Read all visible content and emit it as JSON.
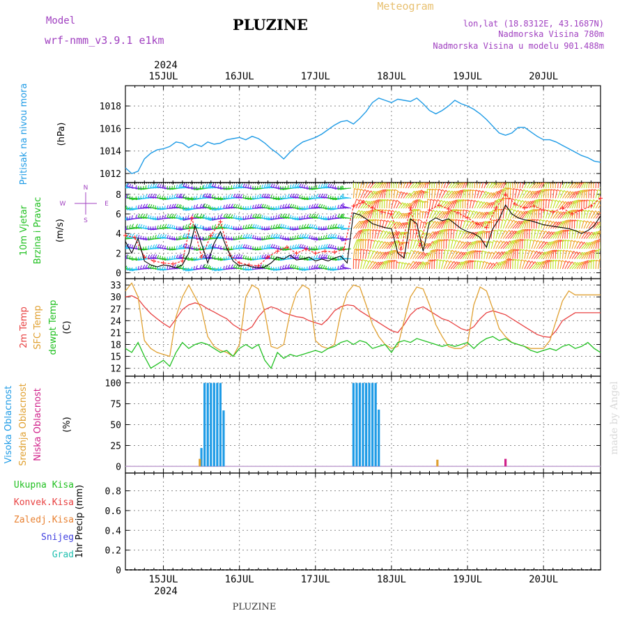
{
  "header": {
    "model_label": "Model",
    "model_name": "wrf-nmm_v3.9.1 e1km",
    "title": "PLUZINE",
    "meteogram_label": "Meteogram",
    "lonlat": "lon,lat (18.8312E, 43.1687N)",
    "elevation": "Nadmorska Visina 780m",
    "model_elevation": "Nadmorska Visina u modelu 901.488m",
    "footer_title": "PLUZINE",
    "watermark": "made by Angel"
  },
  "time_axis": {
    "year": "2024",
    "day_labels": [
      "15JUL",
      "16JUL",
      "17JUL",
      "18JUL",
      "19JUL",
      "20JUL"
    ],
    "day_positions_hours": [
      12,
      36,
      60,
      84,
      108,
      132
    ],
    "range_hours": [
      0,
      150
    ],
    "start_label": "2024-07-14 12:00"
  },
  "colors": {
    "pressure": "#1e9be6",
    "wind_speed": "#000000",
    "wind_gust": "#ff2020",
    "temp2m": "#e84040",
    "tsfc": "#e0a030",
    "dewpt": "#20c020",
    "cloud_high": "#1e9be6",
    "cloud_mid": "#e0a030",
    "cloud_low": "#d0208a",
    "grid": "#888888",
    "title_purple": "#a040c0",
    "meteogram_tan": "#e8c070"
  },
  "chart_data": [
    {
      "type": "line",
      "ylabel": "(hPa)",
      "side_labels": [
        "Pritisak na nivou mora"
      ],
      "ylim": [
        1011.2,
        1019.8
      ],
      "yticks": [
        1012,
        1014,
        1016,
        1018
      ],
      "series": [
        {
          "name": "Pritisak na nivou mora",
          "x": [
            0,
            2,
            4,
            6,
            8,
            10,
            12,
            14,
            16,
            18,
            20,
            22,
            24,
            26,
            28,
            30,
            32,
            34,
            36,
            38,
            40,
            42,
            44,
            46,
            48,
            50,
            52,
            54,
            56,
            58,
            60,
            62,
            64,
            66,
            68,
            70,
            72,
            74,
            76,
            78,
            80,
            82,
            84,
            86,
            88,
            90,
            92,
            94,
            96,
            98,
            100,
            102,
            104,
            106,
            108,
            110,
            112,
            114,
            116,
            118,
            120,
            122,
            124,
            126,
            128,
            130,
            132,
            134,
            136,
            138,
            140,
            142,
            144,
            146,
            148,
            150
          ],
          "values": [
            1012.5,
            1012.0,
            1012.2,
            1013.3,
            1013.8,
            1014.1,
            1014.2,
            1014.4,
            1014.8,
            1014.7,
            1014.3,
            1014.6,
            1014.4,
            1014.8,
            1014.6,
            1014.7,
            1015.0,
            1015.1,
            1015.2,
            1015.0,
            1015.3,
            1015.1,
            1014.7,
            1014.2,
            1013.8,
            1013.3,
            1013.9,
            1014.4,
            1014.8,
            1015.0,
            1015.2,
            1015.5,
            1015.9,
            1016.3,
            1016.6,
            1016.7,
            1016.4,
            1016.9,
            1017.5,
            1018.3,
            1018.7,
            1018.5,
            1018.3,
            1018.6,
            1018.5,
            1018.4,
            1018.7,
            1018.2,
            1017.6,
            1017.3,
            1017.6,
            1018.0,
            1018.5,
            1018.2,
            1018.0,
            1017.7,
            1017.3,
            1016.8,
            1016.2,
            1015.6,
            1015.4,
            1015.6,
            1016.1,
            1016.1,
            1015.7,
            1015.3,
            1015.0,
            1015.0,
            1014.8,
            1014.5,
            1014.2,
            1013.9,
            1013.6,
            1013.4,
            1013.1,
            1013.0
          ]
        }
      ]
    },
    {
      "type": "line",
      "ylabel": "(m/s)",
      "side_labels": [
        "10m Vjetar",
        "Brzina i Pravac"
      ],
      "compass": {
        "n": "N",
        "s": "S",
        "e": "E",
        "w": "W"
      },
      "ylim": [
        -0.6,
        9.2
      ],
      "yticks": [
        0,
        2,
        4,
        6,
        8
      ],
      "series": [
        {
          "name": "Brzina",
          "x": [
            0,
            2,
            4,
            6,
            8,
            10,
            12,
            14,
            16,
            18,
            20,
            22,
            24,
            26,
            28,
            30,
            32,
            34,
            36,
            38,
            40,
            42,
            44,
            46,
            48,
            50,
            52,
            54,
            56,
            58,
            60,
            62,
            64,
            66,
            68,
            70,
            72,
            74,
            76,
            78,
            80,
            82,
            84,
            86,
            88,
            90,
            92,
            94,
            96,
            98,
            100,
            102,
            104,
            106,
            108,
            110,
            112,
            114,
            116,
            118,
            120,
            122,
            124,
            126,
            128,
            130,
            132,
            134,
            136,
            138,
            140,
            142,
            144,
            146,
            148,
            150
          ],
          "values": [
            3.2,
            2.0,
            3.5,
            1.2,
            0.8,
            0.6,
            0.8,
            0.7,
            0.5,
            0.8,
            2.0,
            4.8,
            3.0,
            1.0,
            3.0,
            4.2,
            2.5,
            1.2,
            0.7,
            0.8,
            0.6,
            0.5,
            0.6,
            1.0,
            1.6,
            1.4,
            1.8,
            1.3,
            1.4,
            1.6,
            1.2,
            1.4,
            1.2,
            1.5,
            1.7,
            1.0,
            6.1,
            5.9,
            5.5,
            5.0,
            4.8,
            4.6,
            4.5,
            2.0,
            1.5,
            5.5,
            5.0,
            2.2,
            5.2,
            5.6,
            5.3,
            5.5,
            5.0,
            4.5,
            4.2,
            4.0,
            3.6,
            2.6,
            4.5,
            5.5,
            6.9,
            6.0,
            5.6,
            5.4,
            5.3,
            5.1,
            4.9,
            4.8,
            4.7,
            4.6,
            4.5,
            4.3,
            4.0,
            4.3,
            4.8,
            5.8
          ]
        },
        {
          "name": "Udari",
          "x": [
            0,
            3,
            6,
            9,
            12,
            15,
            18,
            21,
            24,
            27,
            30,
            33,
            36,
            39,
            42,
            45,
            48,
            51,
            54,
            57,
            60,
            63,
            66,
            69,
            72,
            75,
            78,
            81,
            84,
            87,
            90,
            93,
            96,
            99,
            102,
            105,
            108,
            111,
            114,
            117,
            120,
            123,
            126,
            129,
            132,
            135,
            138,
            141,
            144,
            147,
            150
          ],
          "values": [
            3.8,
            3.6,
            1.6,
            1.2,
            1.0,
            0.9,
            1.2,
            5.6,
            1.6,
            3.8,
            5.2,
            1.8,
            1.0,
            0.8,
            0.7,
            1.6,
            2.2,
            2.6,
            2.0,
            2.4,
            2.0,
            2.2,
            2.1,
            2.4,
            6.8,
            7.2,
            6.6,
            6.2,
            6.0,
            2.4,
            6.6,
            2.8,
            6.4,
            6.9,
            6.5,
            6.1,
            5.6,
            5.0,
            4.6,
            6.6,
            8.0,
            7.0,
            6.6,
            6.8,
            6.4,
            6.2,
            6.6,
            6.0,
            6.4,
            6.8,
            7.6
          ]
        }
      ]
    },
    {
      "type": "line",
      "ylabel": "(C)",
      "side_labels": [
        "2m Temp",
        "SFC Temp",
        "dewpt Temp"
      ],
      "ylim": [
        10,
        34.6
      ],
      "yticks": [
        12,
        15,
        18,
        21,
        24,
        27,
        30,
        33
      ],
      "series": [
        {
          "name": "2m Temp",
          "x": [
            0,
            2,
            4,
            6,
            8,
            10,
            12,
            14,
            16,
            18,
            20,
            22,
            24,
            26,
            28,
            30,
            32,
            34,
            36,
            38,
            40,
            42,
            44,
            46,
            48,
            50,
            52,
            54,
            56,
            58,
            60,
            62,
            64,
            66,
            68,
            70,
            72,
            74,
            76,
            78,
            80,
            82,
            84,
            86,
            88,
            90,
            92,
            94,
            96,
            98,
            100,
            102,
            104,
            106,
            108,
            110,
            112,
            114,
            116,
            118,
            120,
            122,
            124,
            126,
            128,
            130,
            132,
            134,
            136,
            138,
            140,
            142,
            144,
            146,
            148,
            150
          ],
          "values": [
            30,
            30.3,
            29.5,
            27.5,
            25.8,
            24.5,
            23.3,
            22.3,
            24.5,
            26.8,
            28.0,
            28.5,
            28.0,
            27.0,
            26.2,
            25.3,
            24.5,
            23.0,
            22.0,
            21.5,
            22.5,
            25.0,
            26.8,
            27.5,
            27.0,
            26.0,
            25.5,
            25.0,
            24.8,
            24.0,
            23.5,
            23.0,
            24.5,
            26.5,
            27.5,
            28.0,
            27.8,
            26.5,
            25.5,
            24.5,
            23.5,
            22.5,
            21.5,
            21.0,
            23.0,
            25.5,
            27.0,
            27.5,
            26.5,
            25.5,
            24.5,
            24.0,
            23.0,
            22.0,
            21.5,
            22.5,
            24.5,
            26.0,
            26.5,
            26.0,
            25.5,
            24.5,
            23.5,
            22.5,
            21.5,
            20.5,
            20.0,
            19.8,
            21.5,
            24.0,
            25.0,
            26.0,
            26.0,
            26.0,
            26.0,
            26.0
          ]
        },
        {
          "name": "SFC Temp",
          "x": [
            0,
            2,
            4,
            6,
            8,
            10,
            12,
            14,
            16,
            18,
            20,
            22,
            24,
            26,
            28,
            30,
            32,
            34,
            36,
            38,
            40,
            42,
            44,
            46,
            48,
            50,
            52,
            54,
            56,
            58,
            60,
            62,
            64,
            66,
            68,
            70,
            72,
            74,
            76,
            78,
            80,
            82,
            84,
            86,
            88,
            90,
            92,
            94,
            96,
            98,
            100,
            102,
            104,
            106,
            108,
            110,
            112,
            114,
            116,
            118,
            120,
            122,
            124,
            126,
            128,
            130,
            132,
            134,
            136,
            138,
            140,
            142,
            144,
            146,
            148,
            150
          ],
          "values": [
            31.5,
            33.5,
            30.0,
            19.0,
            17.0,
            16.0,
            15.5,
            15.0,
            25.0,
            30.0,
            33.0,
            30.0,
            27.0,
            20.0,
            17.5,
            16.5,
            16.0,
            15.0,
            18.0,
            30.0,
            33.0,
            32.0,
            26.0,
            17.5,
            17.0,
            18.0,
            26.0,
            31.0,
            33.0,
            32.0,
            19.0,
            17.5,
            17.0,
            18.0,
            26.0,
            31.0,
            33.0,
            32.5,
            28.0,
            23.0,
            20.0,
            18.0,
            17.0,
            17.5,
            24.0,
            30.0,
            32.5,
            32.0,
            28.0,
            23.0,
            20.0,
            17.5,
            17.0,
            17.0,
            18.0,
            28.0,
            32.5,
            31.5,
            27.0,
            22.0,
            20.0,
            18.5,
            18.0,
            17.5,
            17.0,
            17.0,
            17.0,
            19.0,
            24.0,
            29.0,
            31.5,
            30.5,
            30.5,
            30.5,
            30.5,
            30.5
          ]
        },
        {
          "name": "dewpt Temp",
          "x": [
            0,
            2,
            4,
            6,
            8,
            10,
            12,
            14,
            16,
            18,
            20,
            22,
            24,
            26,
            28,
            30,
            32,
            34,
            36,
            38,
            40,
            42,
            44,
            46,
            48,
            50,
            52,
            54,
            56,
            58,
            60,
            62,
            64,
            66,
            68,
            70,
            72,
            74,
            76,
            78,
            80,
            82,
            84,
            86,
            88,
            90,
            92,
            94,
            96,
            98,
            100,
            102,
            104,
            106,
            108,
            110,
            112,
            114,
            116,
            118,
            120,
            122,
            124,
            126,
            128,
            130,
            132,
            134,
            136,
            138,
            140,
            142,
            144,
            146,
            148,
            150
          ],
          "values": [
            17,
            16,
            18.5,
            15,
            12,
            13,
            14,
            12.5,
            16,
            18.5,
            17,
            18,
            18.5,
            18,
            17,
            16,
            16.5,
            15,
            17,
            18,
            17,
            18,
            14,
            12,
            16,
            14.5,
            15.5,
            15,
            15.5,
            16,
            16.5,
            16,
            17,
            17.5,
            18.5,
            19,
            18,
            19,
            18.5,
            17,
            17.5,
            18,
            16,
            18.5,
            19,
            18.5,
            19.5,
            19,
            18.5,
            18,
            17.5,
            18,
            17.5,
            18,
            18.5,
            17,
            18.5,
            19.5,
            20,
            19,
            19.5,
            18.5,
            18,
            17.5,
            16.5,
            16,
            16.5,
            17,
            16.5,
            17.5,
            18,
            17,
            17.5,
            18.5,
            17,
            16
          ]
        }
      ]
    },
    {
      "type": "bar",
      "ylabel": "(%)",
      "side_labels": [
        "Visoka Oblacnost",
        "Srednja Oblacnost",
        "Niska Oblacnost"
      ],
      "ylim": [
        -8,
        108
      ],
      "yticks": [
        0,
        25,
        50,
        75,
        100
      ],
      "series": [
        {
          "name": "Visoka Oblacnost",
          "x": [
            24,
            25,
            26,
            27,
            28,
            29,
            30,
            31,
            72,
            73,
            74,
            75,
            76,
            77,
            78,
            79,
            80
          ],
          "values": [
            22,
            100,
            100,
            100,
            100,
            100,
            100,
            67,
            100,
            100,
            100,
            100,
            100,
            100,
            100,
            100,
            68
          ]
        },
        {
          "name": "Srednja Oblacnost",
          "x": [
            23.5,
            98.5
          ],
          "values": [
            9,
            8
          ]
        },
        {
          "name": "Niska Oblacnost",
          "x": [
            120
          ],
          "values": [
            9
          ]
        }
      ]
    },
    {
      "type": "bar",
      "ylabel": "1hr Precip (mm)",
      "side_labels": [
        "Ukupna Kisa",
        "Konvek.Kisa",
        "Zaledj.Kisa",
        "Snijeg",
        "Grad"
      ],
      "ylim": [
        0,
        0.98
      ],
      "yticks": [
        0,
        0.2,
        0.4,
        0.6,
        0.8
      ],
      "series": [
        {
          "name": "Ukupna Kisa",
          "x": [],
          "values": []
        }
      ]
    }
  ]
}
